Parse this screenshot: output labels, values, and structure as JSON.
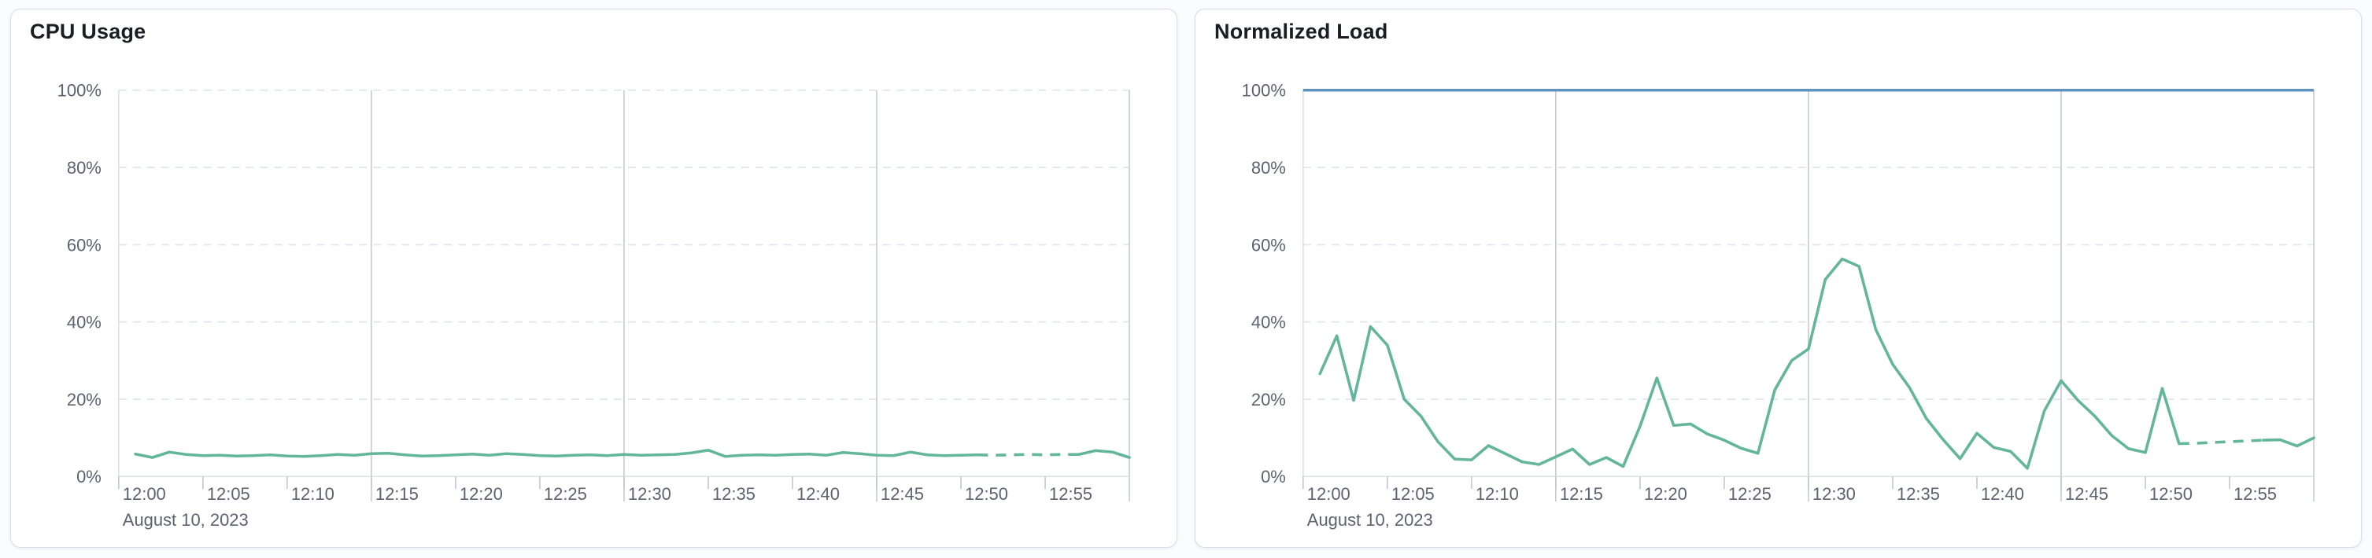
{
  "theme": {
    "series_green": "#63B69A",
    "series_blue": "#6092C0",
    "grid_dashed": "#E3E8F0",
    "grid_solid": "#C6CAD1",
    "axis_line": "#DCE1E9",
    "tick_color": "#C2C7D0",
    "label_color": "#5C6370",
    "title_color": "#1A1D24",
    "card_border": "#D5DDE9",
    "card_bg": "#FFFFFF"
  },
  "panels": [
    {
      "title": "CPU Usage"
    },
    {
      "title": "Normalized Load"
    }
  ],
  "chart_data": [
    {
      "type": "line",
      "title": "CPU Usage",
      "unit": "%",
      "ylim": [
        0,
        100
      ],
      "grid": "horizontal-dashed, vertical-solid-15min",
      "legend": "none",
      "y_axis": {
        "ticks": [
          {
            "value": 0,
            "label": "0%"
          },
          {
            "value": 20,
            "label": "20%"
          },
          {
            "value": 40,
            "label": "40%"
          },
          {
            "value": 60,
            "label": "60%"
          },
          {
            "value": 80,
            "label": "80%"
          },
          {
            "value": 100,
            "label": "100%"
          }
        ]
      },
      "x_axis": {
        "date_label": "August 10, 2023",
        "span_minutes": 60,
        "ticks": [
          {
            "minute": 0,
            "label": "12:00"
          },
          {
            "minute": 5,
            "label": "12:05"
          },
          {
            "minute": 10,
            "label": "12:10"
          },
          {
            "minute": 15,
            "label": "12:15"
          },
          {
            "minute": 20,
            "label": "12:20"
          },
          {
            "minute": 25,
            "label": "12:25"
          },
          {
            "minute": 30,
            "label": "12:30"
          },
          {
            "minute": 35,
            "label": "12:35"
          },
          {
            "minute": 40,
            "label": "12:40"
          },
          {
            "minute": 45,
            "label": "12:45"
          },
          {
            "minute": 50,
            "label": "12:50"
          },
          {
            "minute": 55,
            "label": "12:55"
          }
        ],
        "grid_minutes": [
          15,
          30,
          45,
          60
        ]
      },
      "series": [
        {
          "name": "cpu-usage",
          "color": "#63B69A",
          "start_minute": 1,
          "values": [
            5.8,
            4.9,
            6.3,
            5.7,
            5.4,
            5.5,
            5.3,
            5.4,
            5.6,
            5.3,
            5.2,
            5.4,
            5.7,
            5.5,
            5.9,
            6.0,
            5.6,
            5.3,
            5.4,
            5.6,
            5.8,
            5.5,
            5.9,
            5.7,
            5.4,
            5.3,
            5.5,
            5.6,
            5.4,
            5.7,
            5.5,
            5.6,
            5.7,
            6.1,
            6.8,
            5.2,
            5.5,
            5.6,
            5.5,
            5.7,
            5.8,
            5.5,
            6.2,
            5.9,
            5.5,
            5.4,
            6.3,
            5.6,
            5.4,
            5.5,
            5.6,
            5.5,
            5.6,
            5.7,
            5.6,
            5.7,
            5.7,
            6.7,
            6.3,
            4.9
          ],
          "segments": [
            {
              "from": 1,
              "to": 51,
              "style": "solid"
            },
            {
              "from": 51,
              "to": 57,
              "style": "dashed"
            },
            {
              "from": 57,
              "to": 60,
              "style": "solid"
            }
          ]
        }
      ]
    },
    {
      "type": "line",
      "title": "Normalized Load",
      "unit": "%",
      "ylim": [
        0,
        100
      ],
      "grid": "horizontal-dashed, vertical-solid-15min",
      "legend": "none",
      "y_axis": {
        "ticks": [
          {
            "value": 0,
            "label": "0%"
          },
          {
            "value": 20,
            "label": "20%"
          },
          {
            "value": 40,
            "label": "40%"
          },
          {
            "value": 60,
            "label": "60%"
          },
          {
            "value": 80,
            "label": "80%"
          },
          {
            "value": 100,
            "label": "100%"
          }
        ]
      },
      "x_axis": {
        "date_label": "August 10, 2023",
        "span_minutes": 60,
        "ticks": [
          {
            "minute": 0,
            "label": "12:00"
          },
          {
            "minute": 5,
            "label": "12:05"
          },
          {
            "minute": 10,
            "label": "12:10"
          },
          {
            "minute": 15,
            "label": "12:15"
          },
          {
            "minute": 20,
            "label": "12:20"
          },
          {
            "minute": 25,
            "label": "12:25"
          },
          {
            "minute": 30,
            "label": "12:30"
          },
          {
            "minute": 35,
            "label": "12:35"
          },
          {
            "minute": 40,
            "label": "12:40"
          },
          {
            "minute": 45,
            "label": "12:45"
          },
          {
            "minute": 50,
            "label": "12:50"
          },
          {
            "minute": 55,
            "label": "12:55"
          }
        ],
        "grid_minutes": [
          15,
          30,
          45,
          60
        ]
      },
      "series": [
        {
          "name": "normalized-load",
          "color": "#63B69A",
          "start_minute": 1,
          "values": [
            26.6,
            36.4,
            19.7,
            38.8,
            34.0,
            20.0,
            15.6,
            9.0,
            4.5,
            4.3,
            8.0,
            5.9,
            3.8,
            3.1,
            5.1,
            7.1,
            3.1,
            4.9,
            2.6,
            13.0,
            25.5,
            13.2,
            13.6,
            11.0,
            9.4,
            7.3,
            6.0,
            22.4,
            30.0,
            33.0,
            51.0,
            56.3,
            54.4,
            38.0,
            29.0,
            23.0,
            15.0,
            9.5,
            4.6,
            11.2,
            7.5,
            6.5,
            2.1,
            17.0,
            24.8,
            19.7,
            15.6,
            10.6,
            7.2,
            6.2,
            22.8,
            8.5,
            8.6,
            8.8,
            9.0,
            9.2,
            9.4,
            9.5,
            7.9,
            10.0
          ],
          "segments": [
            {
              "from": 1,
              "to": 52,
              "style": "solid"
            },
            {
              "from": 52,
              "to": 57,
              "style": "dashed"
            },
            {
              "from": 57,
              "to": 60,
              "style": "solid"
            }
          ]
        },
        {
          "name": "load-limit-100",
          "color": "#6092C0",
          "flat_value": 100,
          "from_minute": 0,
          "to_minute": 60
        }
      ]
    }
  ]
}
